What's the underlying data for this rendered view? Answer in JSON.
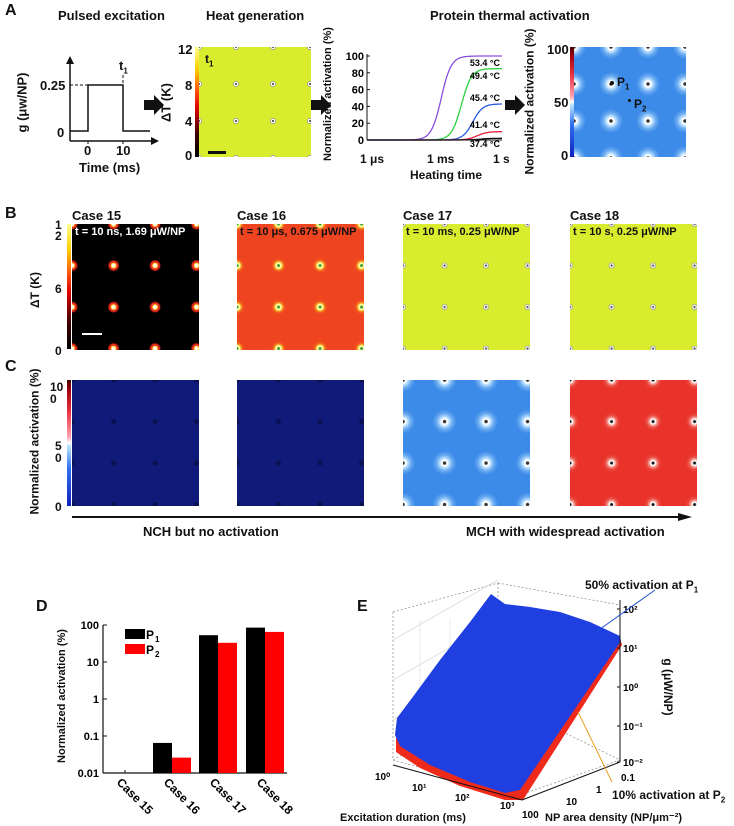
{
  "panels": {
    "A": "A",
    "B": "B",
    "C": "C",
    "D": "D",
    "E": "E"
  },
  "panel_a": {
    "titles": {
      "pulsed": "Pulsed excitation",
      "heat": "Heat generation",
      "protein": "Protein thermal activation"
    },
    "pulse": {
      "ylabel": "g (μw/NP)",
      "xlabel": "Time (ms)",
      "yticks": [
        "0",
        "0.25"
      ],
      "xticks": [
        "0",
        "10"
      ],
      "marker": "t",
      "marker_sub": "1",
      "amplitude": 0.25,
      "start_ms": 0,
      "end_ms": 10
    },
    "heat": {
      "ylabel": "ΔT (K)",
      "cbar_ticks": [
        "12",
        "8",
        "4",
        "0"
      ],
      "marker": "t",
      "marker_sub": "1",
      "color": "#d9ec2e"
    },
    "curves": {
      "ylabel": "Normalized activation (%)",
      "yticks": [
        "100",
        "80",
        "60",
        "40",
        "20",
        "0"
      ],
      "xticks": [
        "1 μs",
        "1 ms",
        "1 s"
      ],
      "xlabel": "Heating time"
    },
    "activation_map": {
      "ylabel": "Normalized activation (%)",
      "cbar_ticks": [
        "100",
        "50",
        "0"
      ],
      "p1": "P",
      "p1_sub": "1",
      "p2": "P",
      "p2_sub": "2",
      "color": "#3c8be8"
    }
  },
  "panel_b": {
    "ylabel": "ΔT (K)",
    "cbar_ticks": {
      "top": "1\n2",
      "mid": "6",
      "bottom": "0"
    },
    "cases": [
      {
        "title": "Case 15",
        "condition": "t = 10 ns, 1.69 μW/NP",
        "color": "#000000",
        "text_color": "#ffffff",
        "dots": "black"
      },
      {
        "title": "Case 16",
        "condition": "t = 10 μs, 0.675 μW/NP",
        "color": "#ef4420",
        "text_color": "#111111",
        "dots": "red"
      },
      {
        "title": "Case 17",
        "condition": "t = 10 ms, 0.25 μW/NP",
        "color": "#d9ec2e",
        "text_color": "#111111",
        "dots": "yellow"
      },
      {
        "title": "Case 18",
        "condition": "t = 10 s, 0.25 μW/NP",
        "color": "#d9ec2e",
        "text_color": "#111111",
        "dots": "yellow"
      }
    ]
  },
  "panel_c": {
    "ylabel": "Normalized activation (%)",
    "cbar_ticks": {
      "top": "10\n0",
      "mid": "5\n0",
      "bottom": "0"
    },
    "maps": [
      {
        "color": "#101a78",
        "dots": "navy"
      },
      {
        "color": "#101a78",
        "dots": "navy"
      },
      {
        "color": "#3c8be8",
        "dots": "blue"
      },
      {
        "color": "#e8322a",
        "dots": "redact"
      }
    ],
    "left_caption": "NCH but no activation",
    "right_caption": "MCH with widespread activation"
  },
  "panel_e": {
    "xlabel": "Excitation duration (ms)",
    "ylabel": "NP area density (NP/μm⁻²)",
    "zlabel": "g (μW/NP)",
    "xticks": [
      "10⁰",
      "10¹",
      "10²",
      "10³"
    ],
    "yticks": [
      "0.1",
      "1",
      "10",
      "100"
    ],
    "zticks": [
      "10²",
      "10¹",
      "10⁰",
      "10⁻¹",
      "10⁻²"
    ],
    "annotation_p1": "50% activation at P",
    "annotation_p1_sub": "1",
    "annotation_p2": "10% activation at P",
    "annotation_p2_sub": "2",
    "colors": {
      "p1_surface": "#1f3fe0",
      "p2_surface": "#f02a1a",
      "p1_line": "#2050d0",
      "p2_line": "#e8a020"
    }
  },
  "chart_data": [
    {
      "type": "line",
      "title": "Protein thermal activation",
      "xlabel": "Heating time",
      "ylabel": "Normalized activation (%)",
      "xscale": "log",
      "xlim_log10_s": [
        -6,
        0
      ],
      "ylim": [
        0,
        100
      ],
      "xticks": [
        "1 μs",
        "1 ms",
        "1 s"
      ],
      "series": [
        {
          "name": "53.4 °C",
          "color": "#8a4fe0",
          "plateau": 100,
          "half_time_log10_s": -2.7
        },
        {
          "name": "49.4 °C",
          "color": "#30d040",
          "plateau": 85,
          "half_time_log10_s": -1.8
        },
        {
          "name": "45.4 °C",
          "color": "#2a5ae8",
          "plateau": 43,
          "half_time_log10_s": -1.3
        },
        {
          "name": "41.4 °C",
          "color": "#e82040",
          "plateau": 10,
          "half_time_log10_s": -1.1
        },
        {
          "name": "37.4 °C",
          "color": "#111111",
          "plateau": 2,
          "half_time_log10_s": -1.0
        }
      ]
    },
    {
      "type": "bar",
      "title": "",
      "xlabel": "",
      "ylabel": "Normalized activation (%)",
      "yscale": "log",
      "ylim": [
        0.01,
        100
      ],
      "yticks": [
        "0.01",
        "0.1",
        "1",
        "10",
        "100"
      ],
      "categories": [
        "Case 15",
        "Case 16",
        "Case 17",
        "Case 18"
      ],
      "legend": "top-left",
      "series": [
        {
          "name": "P1",
          "label": "P",
          "sub": "1",
          "color": "#000000",
          "values": [
            null,
            0.065,
            53,
            85
          ]
        },
        {
          "name": "P2",
          "label": "P",
          "sub": "2",
          "color": "#ff0000",
          "values": [
            null,
            0.026,
            33,
            65
          ]
        }
      ]
    }
  ]
}
